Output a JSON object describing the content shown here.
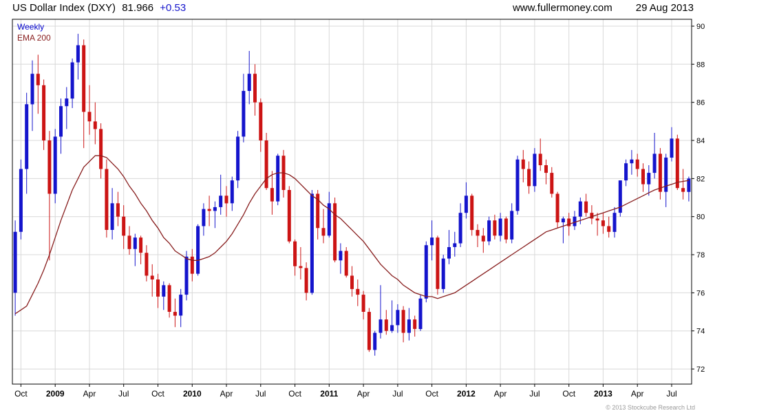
{
  "header": {
    "title": "US Dollar Index (DXY)",
    "price": "81.966",
    "change": "+0.53",
    "website": "www.fullermoney.com",
    "date": "29 Aug 2013"
  },
  "legend": {
    "weekly": "Weekly",
    "ema": "EMA 200"
  },
  "footer": {
    "copyright": "© 2013 Stockcube Research Ltd"
  },
  "colors": {
    "up": "#1414cc",
    "down": "#cc1414",
    "ema": "#871c1c",
    "grid": "#d8d8d8",
    "legend_weekly": "#0000cc",
    "legend_ema": "#871c1c",
    "change_text": "#1414cc"
  },
  "chart_data": {
    "type": "candlestick",
    "title": "US Dollar Index (DXY)",
    "timeframe": "Weekly",
    "overlay": "EMA 200",
    "last_price": 81.966,
    "last_change": 0.53,
    "y_axis": {
      "min": 71.2,
      "max": 90.4,
      "ticks": [
        72,
        74,
        76,
        78,
        80,
        82,
        84,
        86,
        88,
        90
      ]
    },
    "x_labels": [
      {
        "label": "Oct",
        "index": 1,
        "year": false
      },
      {
        "label": "2009",
        "index": 7,
        "year": true
      },
      {
        "label": "Apr",
        "index": 13,
        "year": false
      },
      {
        "label": "Jul",
        "index": 19,
        "year": false
      },
      {
        "label": "Oct",
        "index": 25,
        "year": false
      },
      {
        "label": "2010",
        "index": 31,
        "year": true
      },
      {
        "label": "Apr",
        "index": 37,
        "year": false
      },
      {
        "label": "Jul",
        "index": 43,
        "year": false
      },
      {
        "label": "Oct",
        "index": 49,
        "year": false
      },
      {
        "label": "2011",
        "index": 55,
        "year": true
      },
      {
        "label": "Apr",
        "index": 61,
        "year": false
      },
      {
        "label": "Jul",
        "index": 67,
        "year": false
      },
      {
        "label": "Oct",
        "index": 73,
        "year": false
      },
      {
        "label": "2012",
        "index": 79,
        "year": true
      },
      {
        "label": "Apr",
        "index": 85,
        "year": false
      },
      {
        "label": "Jul",
        "index": 91,
        "year": false
      },
      {
        "label": "Oct",
        "index": 97,
        "year": false
      },
      {
        "label": "2013",
        "index": 103,
        "year": true
      },
      {
        "label": "Apr",
        "index": 109,
        "year": false
      },
      {
        "label": "Jul",
        "index": 115,
        "year": false
      }
    ],
    "candles": [
      [
        76.0,
        79.8,
        74.8,
        79.2
      ],
      [
        79.2,
        83.0,
        78.8,
        82.5
      ],
      [
        82.5,
        86.5,
        81.2,
        85.9
      ],
      [
        85.9,
        88.2,
        84.5,
        87.5
      ],
      [
        87.5,
        88.5,
        85.4,
        86.9
      ],
      [
        86.9,
        87.2,
        83.5,
        84.0
      ],
      [
        84.0,
        84.5,
        77.7,
        81.2
      ],
      [
        81.2,
        84.6,
        80.7,
        84.2
      ],
      [
        84.2,
        86.2,
        83.3,
        85.8
      ],
      [
        85.8,
        86.8,
        84.6,
        86.2
      ],
      [
        86.2,
        88.3,
        85.7,
        88.1
      ],
      [
        88.1,
        89.6,
        87.2,
        89.0
      ],
      [
        89.0,
        89.3,
        83.6,
        85.5
      ],
      [
        85.5,
        86.9,
        84.3,
        85.0
      ],
      [
        85.0,
        86.0,
        83.8,
        84.6
      ],
      [
        84.6,
        84.9,
        82.0,
        82.5
      ],
      [
        82.5,
        83.0,
        78.9,
        79.3
      ],
      [
        79.3,
        81.5,
        78.8,
        80.7
      ],
      [
        80.7,
        81.3,
        79.5,
        80.0
      ],
      [
        80.0,
        80.6,
        78.3,
        79.0
      ],
      [
        79.0,
        79.5,
        78.0,
        78.3
      ],
      [
        78.3,
        79.1,
        77.4,
        78.9
      ],
      [
        78.9,
        79.0,
        77.5,
        78.1
      ],
      [
        78.1,
        78.5,
        76.6,
        76.9
      ],
      [
        76.9,
        77.5,
        75.8,
        76.7
      ],
      [
        76.7,
        77.0,
        75.2,
        75.8
      ],
      [
        75.8,
        76.6,
        75.1,
        76.4
      ],
      [
        76.4,
        76.5,
        74.7,
        75.0
      ],
      [
        75.0,
        75.7,
        74.2,
        74.8
      ],
      [
        74.8,
        76.2,
        74.2,
        75.9
      ],
      [
        75.9,
        78.2,
        75.6,
        77.9
      ],
      [
        77.9,
        78.3,
        76.6,
        77.0
      ],
      [
        77.0,
        79.6,
        76.9,
        79.5
      ],
      [
        79.5,
        80.7,
        79.0,
        80.4
      ],
      [
        80.4,
        81.1,
        79.5,
        80.3
      ],
      [
        80.3,
        80.8,
        79.4,
        80.5
      ],
      [
        80.5,
        82.2,
        80.1,
        81.1
      ],
      [
        81.1,
        81.6,
        80.0,
        80.7
      ],
      [
        80.7,
        82.1,
        80.3,
        81.9
      ],
      [
        81.9,
        84.5,
        81.5,
        84.2
      ],
      [
        84.2,
        87.5,
        83.9,
        86.6
      ],
      [
        86.6,
        88.7,
        85.9,
        87.5
      ],
      [
        87.5,
        88.0,
        85.3,
        86.0
      ],
      [
        86.0,
        86.2,
        83.4,
        84.0
      ],
      [
        84.0,
        84.4,
        81.4,
        81.5
      ],
      [
        81.5,
        82.4,
        80.1,
        80.8
      ],
      [
        80.8,
        83.3,
        80.6,
        83.2
      ],
      [
        83.2,
        83.5,
        81.0,
        81.4
      ],
      [
        81.4,
        81.6,
        78.6,
        78.7
      ],
      [
        78.7,
        78.8,
        76.9,
        77.4
      ],
      [
        77.4,
        78.4,
        76.7,
        77.3
      ],
      [
        77.3,
        77.6,
        75.6,
        76.0
      ],
      [
        76.0,
        81.4,
        75.9,
        81.2
      ],
      [
        81.2,
        81.4,
        78.8,
        79.4
      ],
      [
        79.4,
        80.4,
        78.6,
        79.0
      ],
      [
        79.0,
        81.3,
        78.9,
        80.7
      ],
      [
        80.7,
        81.0,
        77.6,
        77.7
      ],
      [
        77.7,
        78.6,
        77.0,
        78.2
      ],
      [
        78.2,
        78.4,
        76.8,
        76.9
      ],
      [
        76.9,
        77.4,
        75.8,
        76.2
      ],
      [
        76.2,
        76.7,
        75.3,
        75.9
      ],
      [
        75.9,
        76.1,
        74.6,
        75.0
      ],
      [
        75.0,
        75.2,
        72.9,
        73.0
      ],
      [
        73.0,
        74.0,
        72.7,
        73.9
      ],
      [
        73.9,
        76.4,
        73.6,
        74.6
      ],
      [
        74.6,
        75.1,
        73.8,
        74.0
      ],
      [
        74.0,
        75.6,
        73.9,
        74.3
      ],
      [
        74.3,
        75.4,
        73.9,
        75.1
      ],
      [
        75.1,
        75.3,
        73.4,
        73.9
      ],
      [
        73.9,
        75.2,
        73.5,
        74.6
      ],
      [
        74.6,
        74.8,
        73.7,
        74.1
      ],
      [
        74.1,
        75.9,
        74.0,
        75.7
      ],
      [
        75.7,
        78.7,
        75.5,
        78.5
      ],
      [
        78.5,
        79.8,
        77.7,
        78.9
      ],
      [
        78.9,
        79.0,
        75.9,
        76.2
      ],
      [
        76.2,
        78.0,
        76.0,
        77.8
      ],
      [
        77.8,
        79.3,
        77.5,
        78.4
      ],
      [
        78.4,
        79.2,
        77.9,
        78.6
      ],
      [
        78.6,
        80.7,
        78.4,
        80.2
      ],
      [
        80.2,
        81.8,
        79.9,
        81.1
      ],
      [
        81.1,
        81.2,
        79.0,
        79.3
      ],
      [
        79.3,
        79.6,
        78.4,
        79.0
      ],
      [
        79.0,
        79.4,
        78.1,
        78.7
      ],
      [
        78.7,
        80.0,
        78.5,
        79.8
      ],
      [
        79.8,
        80.1,
        78.8,
        79.0
      ],
      [
        79.0,
        80.2,
        78.7,
        79.9
      ],
      [
        79.9,
        80.0,
        78.6,
        78.8
      ],
      [
        78.8,
        80.7,
        78.6,
        80.3
      ],
      [
        80.3,
        83.2,
        80.1,
        83.0
      ],
      [
        83.0,
        83.5,
        81.8,
        82.5
      ],
      [
        82.5,
        82.9,
        81.2,
        81.6
      ],
      [
        81.6,
        83.6,
        81.3,
        83.3
      ],
      [
        83.3,
        84.1,
        82.4,
        82.7
      ],
      [
        82.7,
        83.0,
        81.7,
        82.3
      ],
      [
        82.3,
        82.6,
        81.0,
        81.2
      ],
      [
        81.2,
        81.3,
        79.4,
        79.7
      ],
      [
        79.7,
        80.0,
        78.6,
        79.9
      ],
      [
        79.9,
        80.2,
        79.0,
        79.5
      ],
      [
        79.5,
        80.3,
        79.3,
        80.0
      ],
      [
        80.0,
        81.0,
        79.6,
        80.8
      ],
      [
        80.8,
        81.2,
        80.0,
        80.2
      ],
      [
        80.2,
        80.6,
        79.6,
        79.9
      ],
      [
        79.9,
        80.2,
        79.0,
        79.8
      ],
      [
        79.8,
        80.2,
        79.1,
        79.5
      ],
      [
        79.5,
        80.0,
        78.9,
        79.2
      ],
      [
        79.2,
        80.5,
        78.9,
        80.2
      ],
      [
        80.2,
        81.9,
        80.0,
        81.9
      ],
      [
        81.9,
        83.0,
        81.6,
        82.8
      ],
      [
        82.8,
        83.5,
        82.2,
        83.0
      ],
      [
        83.0,
        83.3,
        82.1,
        82.5
      ],
      [
        82.5,
        82.8,
        81.3,
        81.7
      ],
      [
        81.7,
        82.7,
        81.1,
        82.3
      ],
      [
        82.3,
        84.4,
        82.0,
        83.3
      ],
      [
        83.3,
        83.6,
        80.9,
        81.3
      ],
      [
        81.3,
        83.3,
        80.5,
        83.1
      ],
      [
        83.1,
        84.7,
        82.9,
        84.1
      ],
      [
        84.1,
        84.3,
        81.4,
        81.5
      ],
      [
        81.5,
        82.5,
        80.9,
        81.3
      ],
      [
        81.3,
        82.1,
        80.8,
        82.0
      ]
    ],
    "ema": [
      74.9,
      75.1,
      75.3,
      75.9,
      76.5,
      77.2,
      78.0,
      78.9,
      79.8,
      80.6,
      81.4,
      82.0,
      82.6,
      82.9,
      83.2,
      83.2,
      83.1,
      82.8,
      82.5,
      82.1,
      81.6,
      81.2,
      80.7,
      80.3,
      79.8,
      79.4,
      78.9,
      78.6,
      78.2,
      78.0,
      77.8,
      77.7,
      77.7,
      77.8,
      77.9,
      78.1,
      78.4,
      78.7,
      79.1,
      79.6,
      80.1,
      80.7,
      81.2,
      81.6,
      82.0,
      82.2,
      82.3,
      82.3,
      82.2,
      82.0,
      81.7,
      81.4,
      81.1,
      80.9,
      80.6,
      80.4,
      80.1,
      79.9,
      79.6,
      79.3,
      79.0,
      78.7,
      78.3,
      77.9,
      77.5,
      77.2,
      76.9,
      76.7,
      76.4,
      76.2,
      76.0,
      75.9,
      75.8,
      75.8,
      75.7,
      75.8,
      75.9,
      76.0,
      76.2,
      76.4,
      76.6,
      76.8,
      77.0,
      77.2,
      77.4,
      77.6,
      77.8,
      78.0,
      78.2,
      78.4,
      78.6,
      78.8,
      79.0,
      79.2,
      79.3,
      79.4,
      79.5,
      79.6,
      79.7,
      79.8,
      79.9,
      80.0,
      80.1,
      80.2,
      80.3,
      80.4,
      80.5,
      80.65,
      80.8,
      80.95,
      81.1,
      81.25,
      81.4,
      81.5,
      81.6,
      81.7,
      81.8,
      81.85,
      81.9
    ]
  }
}
